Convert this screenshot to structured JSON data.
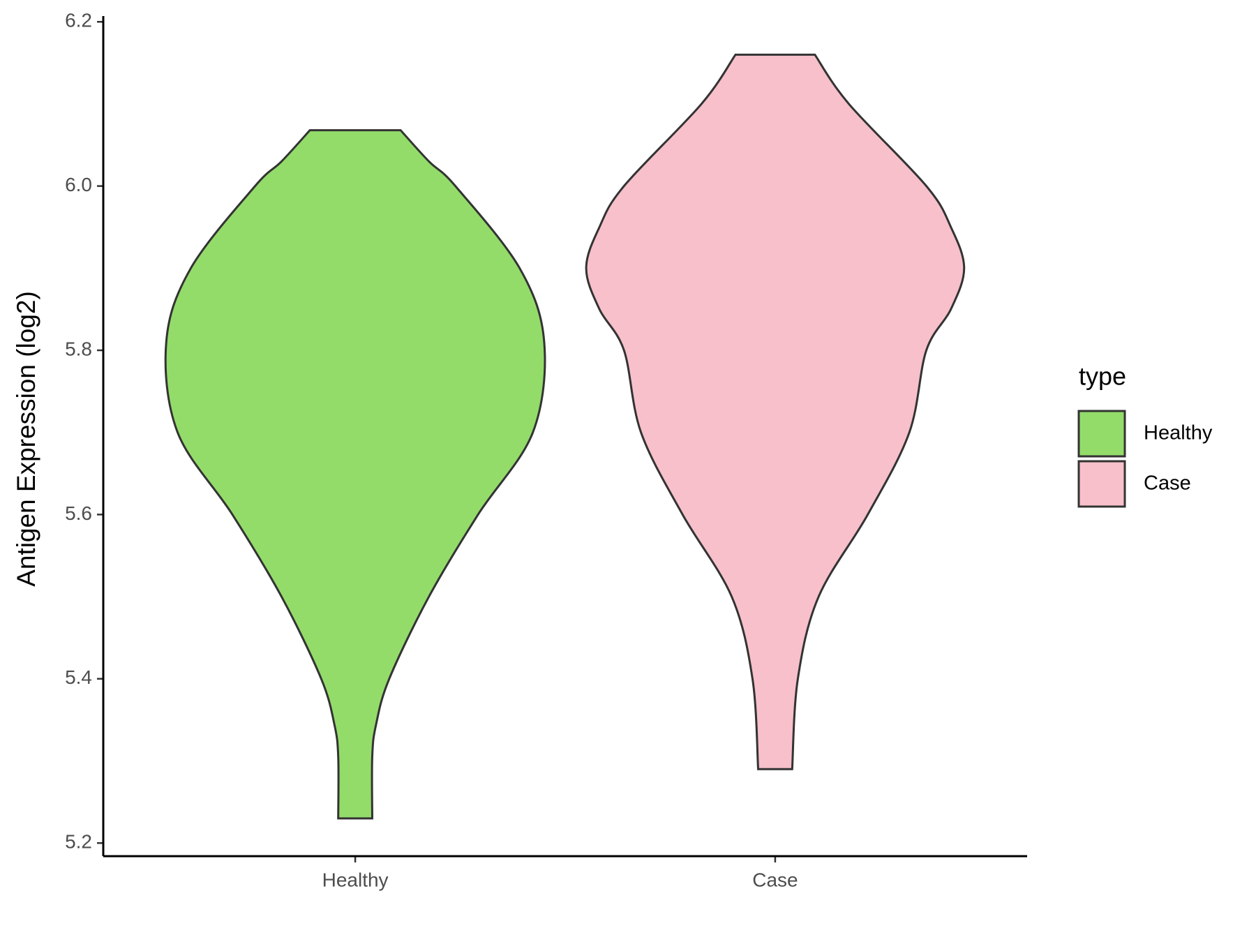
{
  "chart_data": {
    "type": "violin",
    "y_label": "Antigen Expression (log2)",
    "categories": [
      "Healthy",
      "Case"
    ],
    "series": [
      {
        "name": "Healthy",
        "color": "#93dc6a",
        "y": [
          6.068,
          6.03,
          6.0,
          5.9,
          5.81,
          5.7,
          5.6,
          5.5,
          5.4,
          5.344,
          5.305,
          5.23
        ],
        "density": [
          0.24,
          0.39,
          0.53,
          0.87,
          1.0,
          0.94,
          0.65,
          0.39,
          0.18,
          0.11,
          0.09,
          0.09
        ]
      },
      {
        "name": "Case",
        "color": "#f7c0cb",
        "y": [
          6.16,
          6.1,
          6.0,
          5.95,
          5.9,
          5.85,
          5.8,
          5.7,
          5.6,
          5.5,
          5.4,
          5.29
        ],
        "density": [
          0.21,
          0.39,
          0.8,
          0.93,
          1.0,
          0.93,
          0.8,
          0.71,
          0.49,
          0.23,
          0.12,
          0.09
        ]
      }
    ],
    "ylim": [
      5.184,
      6.207
    ],
    "yticks": [
      {
        "value": 5.2,
        "label": "5.2"
      },
      {
        "value": 5.4,
        "label": "5.4"
      },
      {
        "value": 5.6,
        "label": "5.6"
      },
      {
        "value": 5.8,
        "label": "5.8"
      },
      {
        "value": 6.0,
        "label": "6.0"
      },
      {
        "value": 6.2,
        "label": "6.2"
      }
    ],
    "legend_title": "type",
    "legend_position": "right"
  }
}
